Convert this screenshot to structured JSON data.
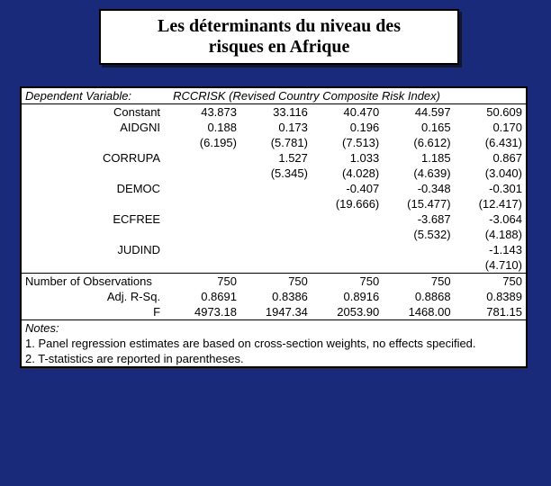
{
  "title": {
    "line1": "Les déterminants du niveau des",
    "line2": "risques en Afrique"
  },
  "header": {
    "dep_label": "Dependent Variable:",
    "dep_value": "RCCRISK (Revised Country Composite Risk Index)"
  },
  "rows": {
    "constant": {
      "label": "Constant",
      "v": [
        "43.873",
        "33.116",
        "40.470",
        "44.597",
        "50.609"
      ]
    },
    "aidgni": {
      "label": "AIDGNI",
      "v": [
        "0.188",
        "0.173",
        "0.196",
        "0.165",
        "0.170"
      ]
    },
    "aidgni_t": {
      "v": [
        "(6.195)",
        "(5.781)",
        "(7.513)",
        "(6.612)",
        "(6.431)"
      ]
    },
    "corrupa": {
      "label": "CORRUPA",
      "v": [
        "",
        "1.527",
        "1.033",
        "1.185",
        "0.867"
      ]
    },
    "corrupa_t": {
      "v": [
        "",
        "(5.345)",
        "(4.028)",
        "(4.639)",
        "(3.040)"
      ]
    },
    "democ": {
      "label": "DEMOC",
      "v": [
        "",
        "",
        "-0.407",
        "-0.348",
        "-0.301"
      ]
    },
    "democ_t": {
      "v": [
        "",
        "",
        "(19.666)",
        "(15.477)",
        "(12.417)"
      ]
    },
    "ecfree": {
      "label": "ECFREE",
      "v": [
        "",
        "",
        "",
        "-3.687",
        "-3.064"
      ]
    },
    "ecfree_t": {
      "v": [
        "",
        "",
        "",
        "(5.532)",
        "(4.188)"
      ]
    },
    "judind": {
      "label": "JUDIND",
      "v": [
        "",
        "",
        "",
        "",
        "-1.143"
      ]
    },
    "judind_t": {
      "v": [
        "",
        "",
        "",
        "",
        "(4.710)"
      ]
    },
    "nobs": {
      "label": "Number of Observations",
      "v": [
        "750",
        "750",
        "750",
        "750",
        "750"
      ]
    },
    "adjr2": {
      "label": "Adj. R-Sq.",
      "v": [
        "0.8691",
        "0.8386",
        "0.8916",
        "0.8868",
        "0.8389"
      ]
    },
    "fstat": {
      "label": "F",
      "v": [
        "4973.18",
        "1947.34",
        "2053.90",
        "1468.00",
        "781.15"
      ]
    }
  },
  "notes": {
    "title": "Notes:",
    "n1": "1. Panel regression estimates are based on cross-section weights, no effects specified.",
    "n2": "2. T-statistics are reported in parentheses."
  }
}
